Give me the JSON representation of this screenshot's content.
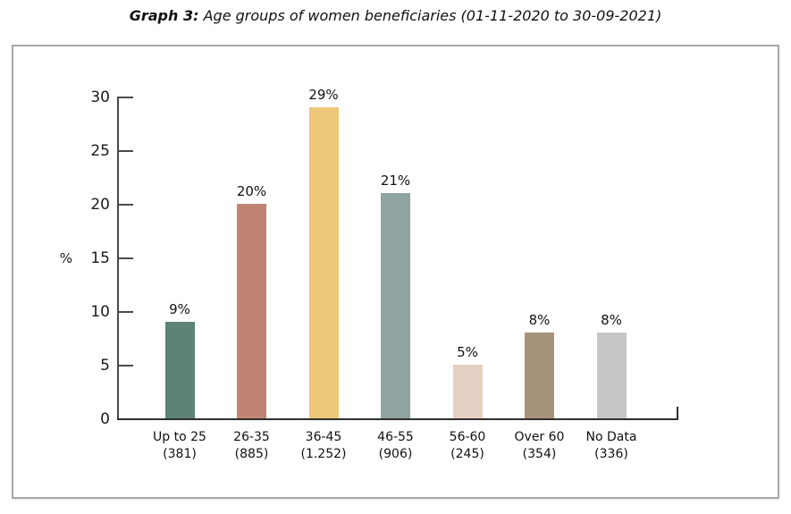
{
  "title": {
    "prefix": "Graph 3:",
    "text": " Age groups of women beneficiaries (01-11-2020 to 30-09-2021)"
  },
  "chart_data": {
    "type": "bar",
    "title": "Graph 3: Age groups of women beneficiaries (01-11-2020 to 30-09-2021)",
    "categories": [
      "Up to 25",
      "26-35",
      "36-45",
      "46-55",
      "56-60",
      "Over 60",
      "No Data"
    ],
    "category_counts": [
      "(381)",
      "(885)",
      "(1.252)",
      "(906)",
      "(245)",
      "(354)",
      "(336)"
    ],
    "values": [
      9,
      20,
      29,
      21,
      5,
      8,
      8
    ],
    "value_labels": [
      "9%",
      "20%",
      "29%",
      "21%",
      "5%",
      "8%",
      "8%"
    ],
    "bar_colors": [
      "#5d8278",
      "#bf8572",
      "#ecc878",
      "#8fa3a0",
      "#e6d0c3",
      "#a7937a",
      "#c6c6c9"
    ],
    "xlabel": "",
    "ylabel": "%",
    "ylim": [
      0,
      30
    ],
    "yticks": [
      0,
      5,
      10,
      15,
      20,
      25,
      30
    ],
    "grid": false,
    "legend": "none",
    "axis_color": "#4a4a4a"
  }
}
